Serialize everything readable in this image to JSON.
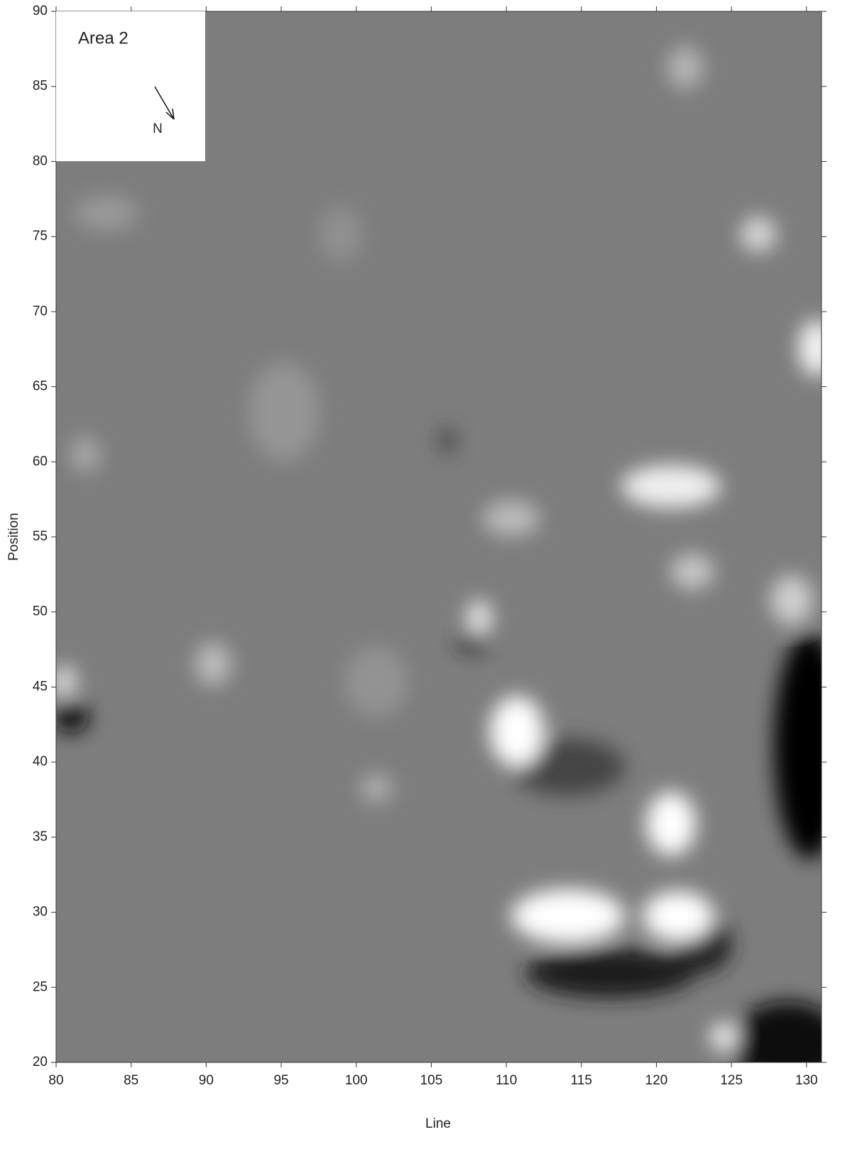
{
  "chart_data": {
    "type": "contour",
    "title": "Area 2",
    "north_label": "N",
    "xlabel": "Line",
    "ylabel": "Position",
    "xlim": [
      80,
      131
    ],
    "ylim": [
      20,
      90
    ],
    "xticks": [
      80,
      85,
      90,
      95,
      100,
      105,
      110,
      115,
      120,
      125,
      130
    ],
    "yticks": [
      20,
      25,
      30,
      35,
      40,
      45,
      50,
      55,
      60,
      65,
      70,
      75,
      80,
      85,
      90
    ]
  }
}
